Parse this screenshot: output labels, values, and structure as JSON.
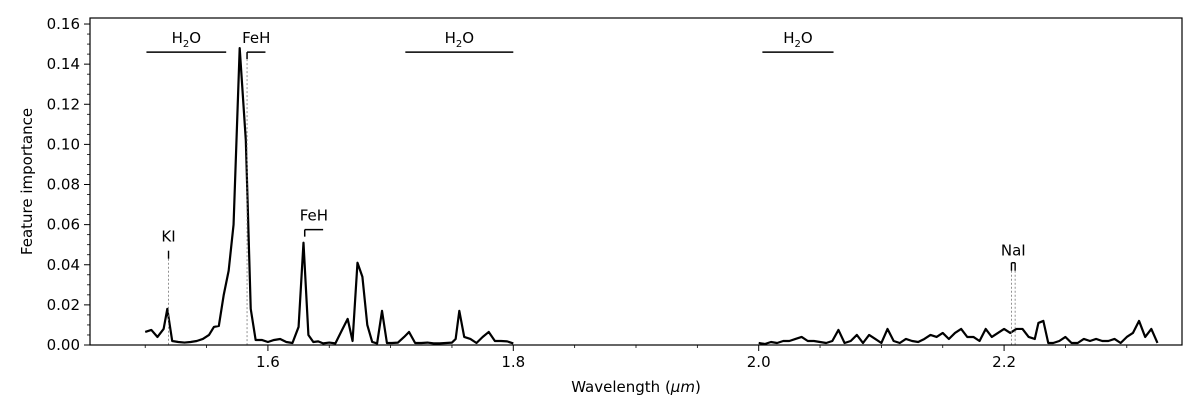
{
  "chart_data": {
    "type": "line",
    "xlabel_prefix": "Wavelength (",
    "xlabel_unit": "μm",
    "xlabel_suffix": ")",
    "ylabel": "Feature importance",
    "xlim": [
      1.455,
      2.345
    ],
    "ylim": [
      0.0,
      0.163
    ],
    "x_ticks": [
      1.6,
      1.8,
      2.0,
      2.2
    ],
    "x_tick_labels": [
      "1.6",
      "1.8",
      "2.0",
      "2.2"
    ],
    "y_ticks": [
      0.0,
      0.02,
      0.04,
      0.06,
      0.08,
      0.1,
      0.12,
      0.14,
      0.16
    ],
    "y_tick_labels": [
      "0.00",
      "0.02",
      "0.04",
      "0.06",
      "0.08",
      "0.10",
      "0.12",
      "0.14",
      "0.16"
    ],
    "grid": false,
    "line_color": "#000000",
    "segments": [
      {
        "points": [
          [
            1.5,
            0.0065
          ],
          [
            1.505,
            0.0075
          ],
          [
            1.51,
            0.004
          ],
          [
            1.515,
            0.008
          ],
          [
            1.518,
            0.018
          ],
          [
            1.522,
            0.002
          ],
          [
            1.527,
            0.0015
          ],
          [
            1.532,
            0.0012
          ],
          [
            1.537,
            0.0015
          ],
          [
            1.542,
            0.002
          ],
          [
            1.547,
            0.003
          ],
          [
            1.552,
            0.005
          ],
          [
            1.556,
            0.009
          ],
          [
            1.56,
            0.0095
          ],
          [
            1.564,
            0.025
          ],
          [
            1.568,
            0.037
          ],
          [
            1.572,
            0.06
          ],
          [
            1.577,
            0.148
          ],
          [
            1.582,
            0.102
          ],
          [
            1.586,
            0.018
          ],
          [
            1.59,
            0.0025
          ],
          [
            1.595,
            0.0025
          ],
          [
            1.6,
            0.0015
          ],
          [
            1.605,
            0.0025
          ],
          [
            1.61,
            0.003
          ],
          [
            1.615,
            0.0015
          ],
          [
            1.62,
            0.001
          ],
          [
            1.625,
            0.009
          ],
          [
            1.629,
            0.051
          ],
          [
            1.633,
            0.005
          ],
          [
            1.637,
            0.0015
          ],
          [
            1.641,
            0.0018
          ],
          [
            1.645,
            0.0008
          ],
          [
            1.65,
            0.0012
          ],
          [
            1.655,
            0.0008
          ],
          [
            1.66,
            0.007
          ],
          [
            1.665,
            0.013
          ],
          [
            1.669,
            0.002
          ],
          [
            1.673,
            0.041
          ],
          [
            1.677,
            0.034
          ],
          [
            1.681,
            0.01
          ],
          [
            1.685,
            0.0015
          ],
          [
            1.689,
            0.0008
          ],
          [
            1.693,
            0.017
          ],
          [
            1.697,
            0.001
          ],
          [
            1.701,
            0.001
          ],
          [
            1.706,
            0.0012
          ],
          [
            1.711,
            0.004
          ],
          [
            1.715,
            0.0065
          ],
          [
            1.72,
            0.001
          ],
          [
            1.725,
            0.001
          ],
          [
            1.73,
            0.0012
          ],
          [
            1.735,
            0.0008
          ],
          [
            1.74,
            0.0008
          ],
          [
            1.745,
            0.001
          ],
          [
            1.75,
            0.0012
          ],
          [
            1.753,
            0.003
          ],
          [
            1.756,
            0.017
          ],
          [
            1.76,
            0.004
          ],
          [
            1.765,
            0.003
          ],
          [
            1.77,
            0.001
          ],
          [
            1.775,
            0.004
          ],
          [
            1.78,
            0.0065
          ],
          [
            1.785,
            0.002
          ],
          [
            1.79,
            0.002
          ],
          [
            1.795,
            0.0018
          ],
          [
            1.8,
            0.0008
          ]
        ]
      },
      {
        "points": [
          [
            2.0,
            0.001
          ],
          [
            2.005,
            0.0005
          ],
          [
            2.01,
            0.0015
          ],
          [
            2.015,
            0.001
          ],
          [
            2.02,
            0.002
          ],
          [
            2.025,
            0.002
          ],
          [
            2.03,
            0.003
          ],
          [
            2.035,
            0.004
          ],
          [
            2.04,
            0.002
          ],
          [
            2.045,
            0.002
          ],
          [
            2.05,
            0.0015
          ],
          [
            2.055,
            0.001
          ],
          [
            2.06,
            0.002
          ],
          [
            2.065,
            0.0075
          ],
          [
            2.07,
            0.001
          ],
          [
            2.075,
            0.002
          ],
          [
            2.08,
            0.005
          ],
          [
            2.085,
            0.001
          ],
          [
            2.09,
            0.005
          ],
          [
            2.095,
            0.003
          ],
          [
            2.1,
            0.001
          ],
          [
            2.105,
            0.008
          ],
          [
            2.11,
            0.002
          ],
          [
            2.115,
            0.001
          ],
          [
            2.12,
            0.003
          ],
          [
            2.125,
            0.002
          ],
          [
            2.13,
            0.0015
          ],
          [
            2.135,
            0.003
          ],
          [
            2.14,
            0.005
          ],
          [
            2.145,
            0.004
          ],
          [
            2.15,
            0.006
          ],
          [
            2.155,
            0.003
          ],
          [
            2.16,
            0.006
          ],
          [
            2.165,
            0.008
          ],
          [
            2.17,
            0.004
          ],
          [
            2.175,
            0.004
          ],
          [
            2.18,
            0.002
          ],
          [
            2.185,
            0.008
          ],
          [
            2.19,
            0.004
          ],
          [
            2.195,
            0.006
          ],
          [
            2.2,
            0.008
          ],
          [
            2.205,
            0.006
          ],
          [
            2.21,
            0.008
          ],
          [
            2.215,
            0.008
          ],
          [
            2.22,
            0.004
          ],
          [
            2.225,
            0.003
          ],
          [
            2.228,
            0.011
          ],
          [
            2.232,
            0.012
          ],
          [
            2.236,
            0.001
          ],
          [
            2.24,
            0.001
          ],
          [
            2.245,
            0.002
          ],
          [
            2.25,
            0.004
          ],
          [
            2.255,
            0.001
          ],
          [
            2.26,
            0.001
          ],
          [
            2.265,
            0.003
          ],
          [
            2.27,
            0.002
          ],
          [
            2.275,
            0.003
          ],
          [
            2.28,
            0.002
          ],
          [
            2.285,
            0.002
          ],
          [
            2.29,
            0.003
          ],
          [
            2.295,
            0.001
          ],
          [
            2.3,
            0.004
          ],
          [
            2.305,
            0.006
          ],
          [
            2.31,
            0.012
          ],
          [
            2.315,
            0.004
          ],
          [
            2.32,
            0.008
          ],
          [
            2.325,
            0.001
          ]
        ]
      }
    ],
    "band_annotations": [
      {
        "id": "h2o-1",
        "base": "H",
        "sub": "2",
        "tail": "O",
        "x_start": 1.501,
        "x_end": 1.566,
        "y": 0.146
      },
      {
        "id": "feh-1",
        "label": "FeH",
        "x_start": 1.583,
        "x_end": 1.598,
        "y": 0.146,
        "tick_left": true,
        "dashed_x": 1.583
      },
      {
        "id": "h2o-2",
        "base": "H",
        "sub": "2",
        "tail": "O",
        "x_start": 1.712,
        "x_end": 1.8,
        "y": 0.146
      },
      {
        "id": "h2o-3",
        "base": "H",
        "sub": "2",
        "tail": "O",
        "x_start": 2.003,
        "x_end": 2.061,
        "y": 0.146
      },
      {
        "id": "feh-2",
        "label": "FeH",
        "x_start": 1.63,
        "x_end": 1.645,
        "y": 0.0575,
        "tick_left": true
      }
    ],
    "line_annotations": [
      {
        "id": "ki",
        "label": "KI",
        "xs": [
          1.519
        ],
        "y_label": 0.0505,
        "y_mark_top": 0.047,
        "y_mark_bottom": 0.043
      },
      {
        "id": "nai",
        "label": "NaI",
        "xs": [
          2.206,
          2.209
        ],
        "y_label": 0.0435,
        "y_mark_top": 0.041,
        "y_mark_bottom": 0.037
      }
    ]
  }
}
